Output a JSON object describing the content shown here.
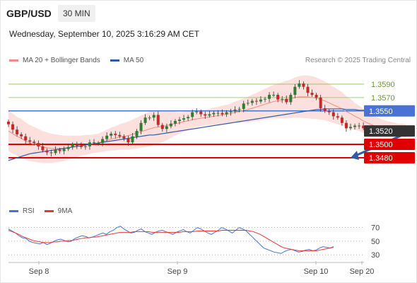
{
  "header": {
    "symbol": "GBP/USD",
    "timeframe": "30 MIN",
    "datetime": "Wednesday, September 10, 2025 3:16:29 AM CET"
  },
  "legend": {
    "items": [
      {
        "label": "MA 20 + Bollinger Bands",
        "color": "#f28b82"
      },
      {
        "label": "MA 50",
        "color": "#2e5aa8"
      }
    ],
    "credit": "Research © 2025 Trading Central"
  },
  "rsi_legend": {
    "items": [
      {
        "label": "RSI",
        "color": "#4a72d6"
      },
      {
        "label": "9MA",
        "color": "#e53935"
      }
    ]
  },
  "chart_data": [
    {
      "type": "candlestick",
      "title": "",
      "ylim": [
        1.3425,
        1.361
      ],
      "x_ticks": [
        "Sep 8",
        "Sep 9",
        "Sep 10",
        "Sep 20"
      ],
      "levels": [
        {
          "value": 1.359,
          "label": "1.3590",
          "style": "resistance-thin",
          "color": "#8bc34a"
        },
        {
          "value": 1.357,
          "label": "1.3570",
          "style": "resistance-thin",
          "color": "#8bc34a"
        },
        {
          "value": 1.355,
          "label": "1.3550",
          "style": "pivot",
          "color": "#4a72d6"
        },
        {
          "value": 1.352,
          "label": "1.3520",
          "style": "last-price",
          "color": "#333333"
        },
        {
          "value": 1.35,
          "label": "1.3500",
          "style": "support",
          "color": "#e00000"
        },
        {
          "value": 1.348,
          "label": "1.3480",
          "style": "support",
          "color": "#e00000"
        }
      ],
      "close": [
        1.353,
        1.3522,
        1.3515,
        1.3512,
        1.3506,
        1.3504,
        1.3502,
        1.3497,
        1.3491,
        1.3488,
        1.3487,
        1.3492,
        1.349,
        1.3493,
        1.3496,
        1.35,
        1.3498,
        1.3496,
        1.3497,
        1.3503,
        1.3502,
        1.3502,
        1.3508,
        1.3513,
        1.3516,
        1.3514,
        1.3512,
        1.3509,
        1.3503,
        1.3512,
        1.352,
        1.3532,
        1.354,
        1.354,
        1.3544,
        1.3529,
        1.3523,
        1.3527,
        1.3531,
        1.3535,
        1.3537,
        1.3539,
        1.3541,
        1.3548,
        1.3549,
        1.3545,
        1.3543,
        1.3545,
        1.3547,
        1.3547,
        1.3545,
        1.3548,
        1.3549,
        1.3552,
        1.3553,
        1.3561,
        1.3562,
        1.3565,
        1.3564,
        1.3567,
        1.3568,
        1.3574,
        1.3574,
        1.3567,
        1.3568,
        1.3563,
        1.3574,
        1.3586,
        1.3591,
        1.3586,
        1.3577,
        1.3574,
        1.357,
        1.3554,
        1.355,
        1.3548,
        1.3542,
        1.354,
        1.3532,
        1.3524,
        1.3526,
        1.3528,
        1.3528,
        1.3524,
        1.352,
        1.3517,
        1.3518,
        1.3521,
        1.352,
        1.352,
        1.3522,
        1.3523,
        1.352,
        1.3521
      ],
      "ma20": [
        1.352,
        1.3516,
        1.3512,
        1.3509,
        1.3505,
        1.3502,
        1.35,
        1.3498,
        1.3496,
        1.3495,
        1.3494,
        1.3494,
        1.3494,
        1.3494,
        1.3495,
        1.3496,
        1.3497,
        1.3498,
        1.3499,
        1.35,
        1.3501,
        1.3502,
        1.3504,
        1.3506,
        1.3508,
        1.3509,
        1.3511,
        1.3512,
        1.3513,
        1.3515,
        1.3517,
        1.3519,
        1.3521,
        1.3523,
        1.3525,
        1.3526,
        1.3527,
        1.3528,
        1.353,
        1.3531,
        1.3532,
        1.3534,
        1.3535,
        1.3537,
        1.3538,
        1.3539,
        1.354,
        1.3541,
        1.3542,
        1.3543,
        1.3544,
        1.3545,
        1.3546,
        1.3548,
        1.3549,
        1.3551,
        1.3552,
        1.3554,
        1.3556,
        1.3558,
        1.356,
        1.3562,
        1.3564,
        1.3565,
        1.3566,
        1.3567,
        1.3568,
        1.357,
        1.3571,
        1.3571,
        1.3571,
        1.357,
        1.3569,
        1.3567,
        1.3565,
        1.3562,
        1.3559,
        1.3556,
        1.3553,
        1.3549,
        1.3546,
        1.3542,
        1.3539,
        1.3535,
        1.3532,
        1.3529,
        1.3527,
        1.3525,
        1.3524,
        1.3523,
        1.3522,
        1.3521,
        1.3521,
        1.352
      ],
      "ma50": [
        1.3476,
        1.3478,
        1.348,
        1.3482,
        1.3484,
        1.3486,
        1.3487,
        1.3488,
        1.3489,
        1.349,
        1.3491,
        1.3492,
        1.3493,
        1.3494,
        1.3495,
        1.3496,
        1.3497,
        1.3498,
        1.3499,
        1.35,
        1.3501,
        1.3502,
        1.3503,
        1.3504,
        1.3505,
        1.3506,
        1.3507,
        1.3508,
        1.3509,
        1.351,
        1.3511,
        1.3512,
        1.3513,
        1.3514,
        1.3514,
        1.3515,
        1.3516,
        1.3517,
        1.3518,
        1.3519,
        1.352,
        1.3521,
        1.3522,
        1.3523,
        1.3524,
        1.3525,
        1.3526,
        1.3527,
        1.3528,
        1.3529,
        1.353,
        1.3531,
        1.3532,
        1.3533,
        1.3534,
        1.3535,
        1.3536,
        1.3537,
        1.3538,
        1.3539,
        1.354,
        1.3541,
        1.3542,
        1.3543,
        1.3544,
        1.3545,
        1.3546,
        1.3547,
        1.3548,
        1.3549,
        1.355,
        1.3551,
        1.3552,
        1.3552,
        1.3553,
        1.3553,
        1.3553,
        1.3553,
        1.3553,
        1.3552,
        1.3552,
        1.3552,
        1.3551,
        1.3551,
        1.3551,
        1.355,
        1.355,
        1.355,
        1.355,
        1.3549,
        1.3549,
        1.3549,
        1.3549,
        1.3549
      ],
      "bb_width": [
        0.003,
        0.003,
        0.0029,
        0.0029,
        0.0028,
        0.0027,
        0.0026,
        0.0025,
        0.0024,
        0.0023,
        0.0022,
        0.0021,
        0.002,
        0.0019,
        0.0018,
        0.0017,
        0.0016,
        0.0015,
        0.0015,
        0.0014,
        0.0014,
        0.0014,
        0.0015,
        0.0016,
        0.0017,
        0.0018,
        0.0019,
        0.002,
        0.0021,
        0.0022,
        0.0023,
        0.0024,
        0.0025,
        0.0026,
        0.0026,
        0.0025,
        0.0024,
        0.0022,
        0.002,
        0.0018,
        0.0016,
        0.0015,
        0.0014,
        0.0013,
        0.0012,
        0.0012,
        0.0012,
        0.0012,
        0.0013,
        0.0013,
        0.0014,
        0.0014,
        0.0015,
        0.0016,
        0.0017,
        0.0018,
        0.0019,
        0.002,
        0.0021,
        0.0022,
        0.0023,
        0.0024,
        0.0025,
        0.0026,
        0.0027,
        0.0028,
        0.0029,
        0.003,
        0.0031,
        0.0032,
        0.0032,
        0.0032,
        0.0031,
        0.003,
        0.0029,
        0.0028,
        0.0027,
        0.0026,
        0.0025,
        0.0023,
        0.0022,
        0.002,
        0.0019,
        0.0018,
        0.0016,
        0.0015,
        0.0014,
        0.0013,
        0.0012,
        0.0011,
        0.0011,
        0.001,
        0.001,
        0.001
      ],
      "forecast": {
        "from": 1.352,
        "to": 1.348
      }
    },
    {
      "type": "line",
      "title": "",
      "ylim": [
        25,
        80
      ],
      "y_ticks": [
        70,
        50,
        30
      ],
      "series": [
        {
          "name": "RSI",
          "color": "#4a72d6",
          "values": [
            68,
            65,
            62,
            58,
            55,
            54,
            50,
            48,
            47,
            46,
            48,
            45,
            47,
            50,
            52,
            53,
            51,
            49,
            50,
            54,
            56,
            58,
            57,
            55,
            56,
            58,
            60,
            62,
            60,
            64,
            66,
            70,
            72,
            68,
            65,
            62,
            63,
            66,
            68,
            64,
            62,
            60,
            63,
            65,
            66,
            64,
            62,
            60,
            63,
            65,
            67,
            64,
            62,
            66,
            70,
            68,
            65,
            62,
            60,
            63,
            66,
            70,
            68,
            65,
            62,
            66,
            70,
            68,
            65,
            60,
            55,
            50,
            45,
            40,
            38,
            36,
            34,
            33,
            32,
            35,
            37,
            38,
            36,
            34,
            35,
            37,
            38,
            36,
            37,
            40,
            42,
            41,
            40,
            42
          ]
        },
        {
          "name": "9MA",
          "color": "#e53935",
          "values": [
            66,
            64,
            62,
            60,
            57,
            55,
            53,
            51,
            50,
            49,
            48,
            48,
            48,
            49,
            49,
            50,
            50,
            51,
            51,
            52,
            53,
            54,
            55,
            55,
            56,
            56,
            57,
            58,
            59,
            60,
            61,
            62,
            63,
            63,
            63,
            63,
            64,
            64,
            64,
            64,
            64,
            63,
            63,
            63,
            63,
            63,
            63,
            63,
            63,
            63,
            64,
            64,
            64,
            64,
            65,
            65,
            65,
            65,
            65,
            65,
            65,
            66,
            66,
            66,
            66,
            66,
            66,
            66,
            66,
            65,
            64,
            62,
            60,
            57,
            54,
            51,
            48,
            45,
            42,
            40,
            39,
            38,
            37,
            36,
            36,
            36,
            36,
            36,
            36,
            37,
            38,
            39,
            40,
            41
          ]
        }
      ]
    }
  ]
}
